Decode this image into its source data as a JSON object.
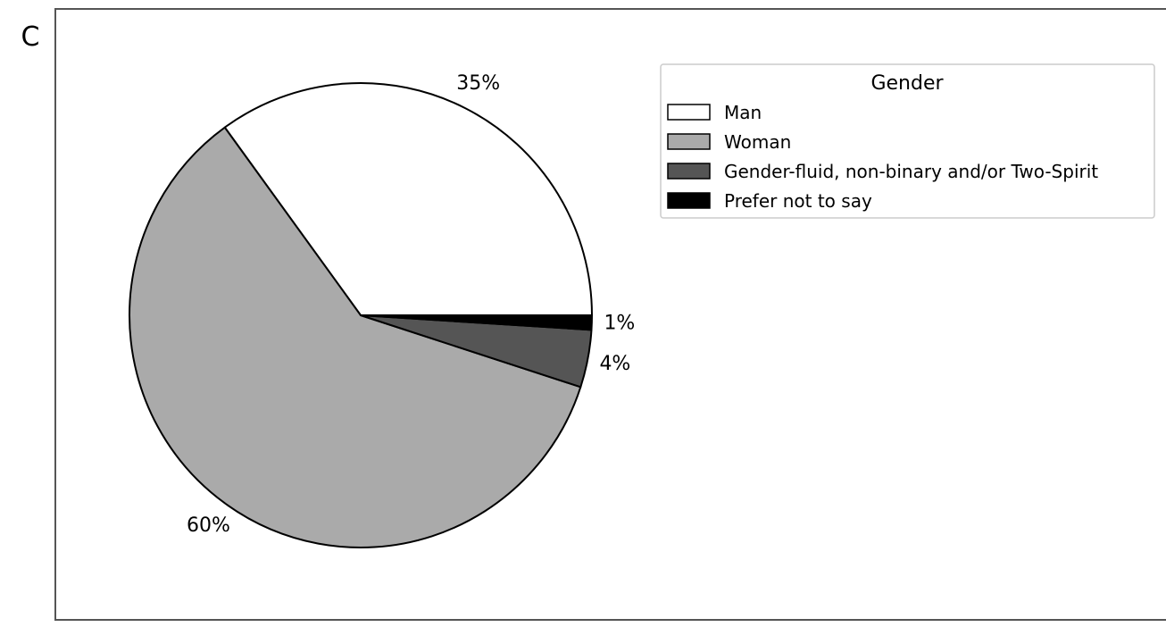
{
  "panel_label": "C",
  "chart_data": {
    "type": "pie",
    "title": "",
    "legend": {
      "title": "Gender",
      "placement": "top-right"
    },
    "start_angle_deg": 0,
    "direction": "counterclockwise",
    "slices": [
      {
        "label": "Man",
        "value": 35,
        "value_label": "35%",
        "color": "#ffffff"
      },
      {
        "label": "Woman",
        "value": 60,
        "value_label": "60%",
        "color": "#aaaaaa"
      },
      {
        "label": "Gender-fluid, non-binary and/or Two-Spirit",
        "value": 4,
        "value_label": "4%",
        "color": "#555555"
      },
      {
        "label": "Prefer not to say",
        "value": 1,
        "value_label": "1%",
        "color": "#000000"
      }
    ]
  }
}
